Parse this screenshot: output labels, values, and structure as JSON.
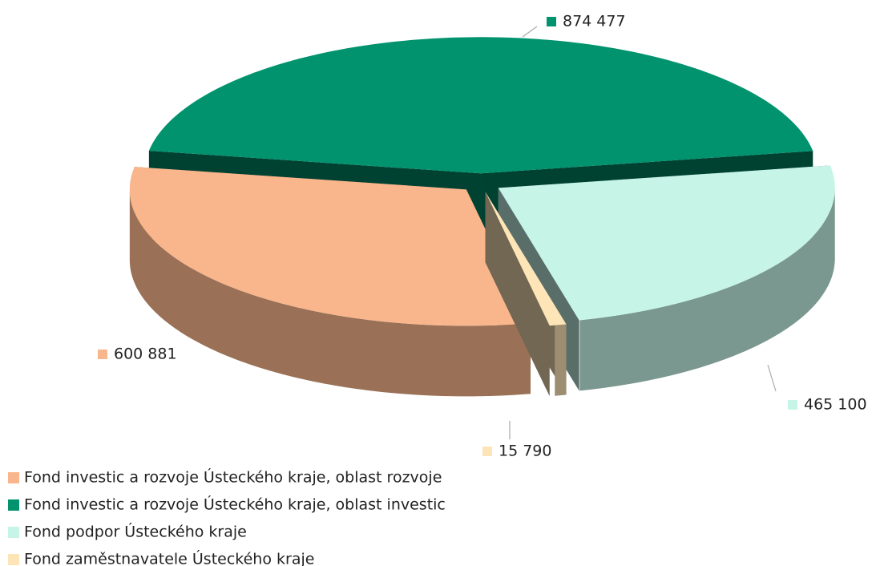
{
  "chart_data": {
    "type": "pie",
    "categories": [
      "Fond investic a rozvoje Ústeckého kraje, oblast rozvoje",
      "Fond investic a rozvoje Ústeckého kraje, oblast investic",
      "Fond podpor Ústeckého kraje",
      "Fond zaměstnavatele Ústeckého kraje"
    ],
    "values": [
      600881,
      874477,
      465100,
      15790
    ],
    "value_labels": [
      "600 881",
      "874 477",
      "465 100",
      "15 790"
    ],
    "colors": [
      "#F9B68C",
      "#00936E",
      "#C6F5E8",
      "#FDE5B8"
    ]
  }
}
